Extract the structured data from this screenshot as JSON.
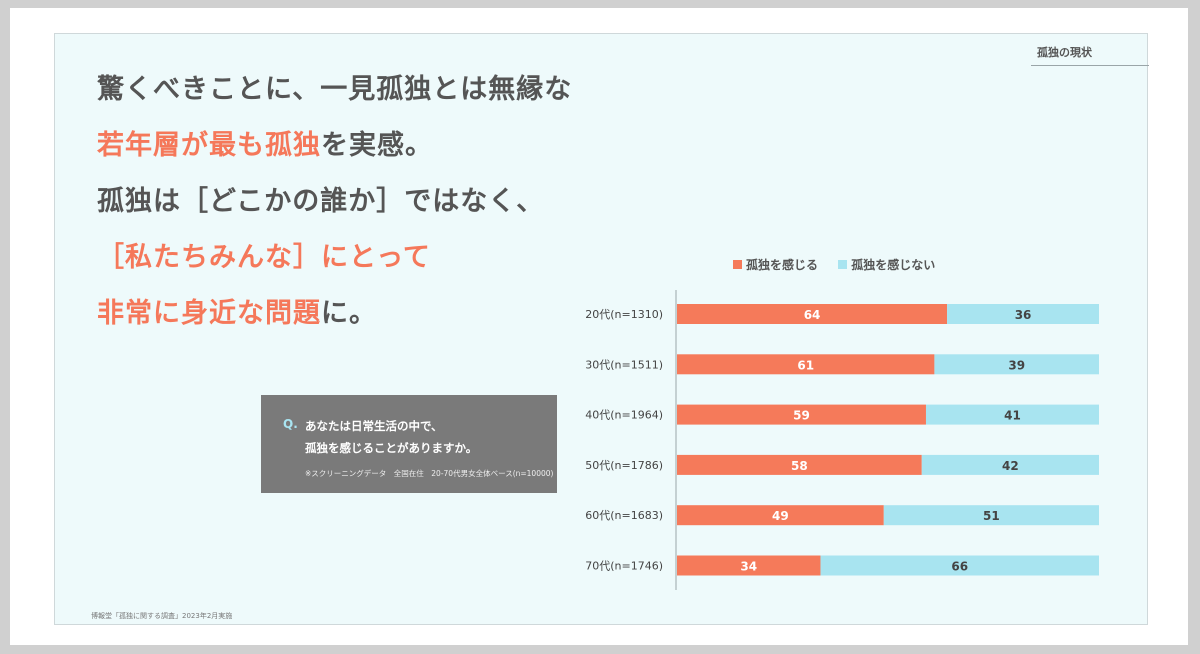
{
  "section_label": "孤独の現状",
  "headline": {
    "line1": "驚くべきことに、一見孤独とは無縁な",
    "line2_accent": "若年層が最も孤独",
    "line2_rest": "を実感。",
    "line3": "孤独は［どこかの誰か］ではなく、",
    "line4": "［私たちみんな］にとって",
    "line5_accent": "非常に身近な問題",
    "line5_rest": "に。"
  },
  "question": {
    "mark": "Q.",
    "line1": "あなたは日常生活の中で、",
    "line2": "孤独を感じることがありますか。",
    "note": "※スクリーニングデータ　全国在住　20-70代男女全体ベース(n=10000)"
  },
  "source": "博報堂「孤独に関する調査」2023年2月実施",
  "colors": {
    "feel": "#f57a5a",
    "not_feel": "#a8e4f0",
    "accent_text": "#f5785a"
  },
  "chart_data": {
    "type": "bar",
    "orientation": "horizontal",
    "stacked": true,
    "categories": [
      "20代(n=1310)",
      "30代(n=1511)",
      "40代(n=1964)",
      "50代(n=1786)",
      "60代(n=1683)",
      "70代(n=1746)"
    ],
    "series": [
      {
        "name": "孤独を感じる",
        "values": [
          64,
          61,
          59,
          58,
          49,
          34
        ]
      },
      {
        "name": "孤独を感じない",
        "values": [
          36,
          39,
          41,
          42,
          51,
          66
        ]
      }
    ],
    "xlim": [
      0,
      100
    ],
    "legend": "top",
    "grid": false
  }
}
